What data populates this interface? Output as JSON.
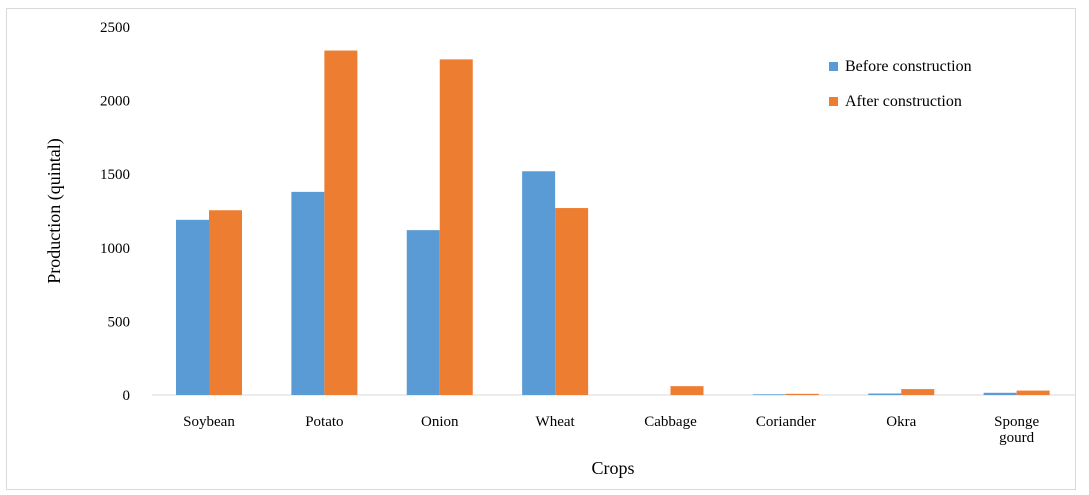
{
  "chart_data": {
    "type": "bar",
    "title": "",
    "xlabel": "Crops",
    "ylabel": "Production (quintal)",
    "ylim": [
      0,
      2500
    ],
    "yticks": [
      0,
      500,
      1000,
      1500,
      2000,
      2500
    ],
    "categories": [
      [
        "Soybean"
      ],
      [
        "Potato"
      ],
      [
        "Onion"
      ],
      [
        "Wheat"
      ],
      [
        "Cabbage"
      ],
      [
        "Coriander"
      ],
      [
        "Okra"
      ],
      [
        "Sponge",
        "gourd"
      ]
    ],
    "series": [
      {
        "name": "Before construction",
        "color": "#5B9BD5",
        "values": [
          1190,
          1380,
          1120,
          1520,
          0,
          5,
          10,
          15
        ]
      },
      {
        "name": "After construction",
        "color": "#ED7D31",
        "values": [
          1255,
          2340,
          2280,
          1270,
          60,
          8,
          40,
          30
        ]
      }
    ],
    "legend_position": "top-right",
    "grid": false
  }
}
